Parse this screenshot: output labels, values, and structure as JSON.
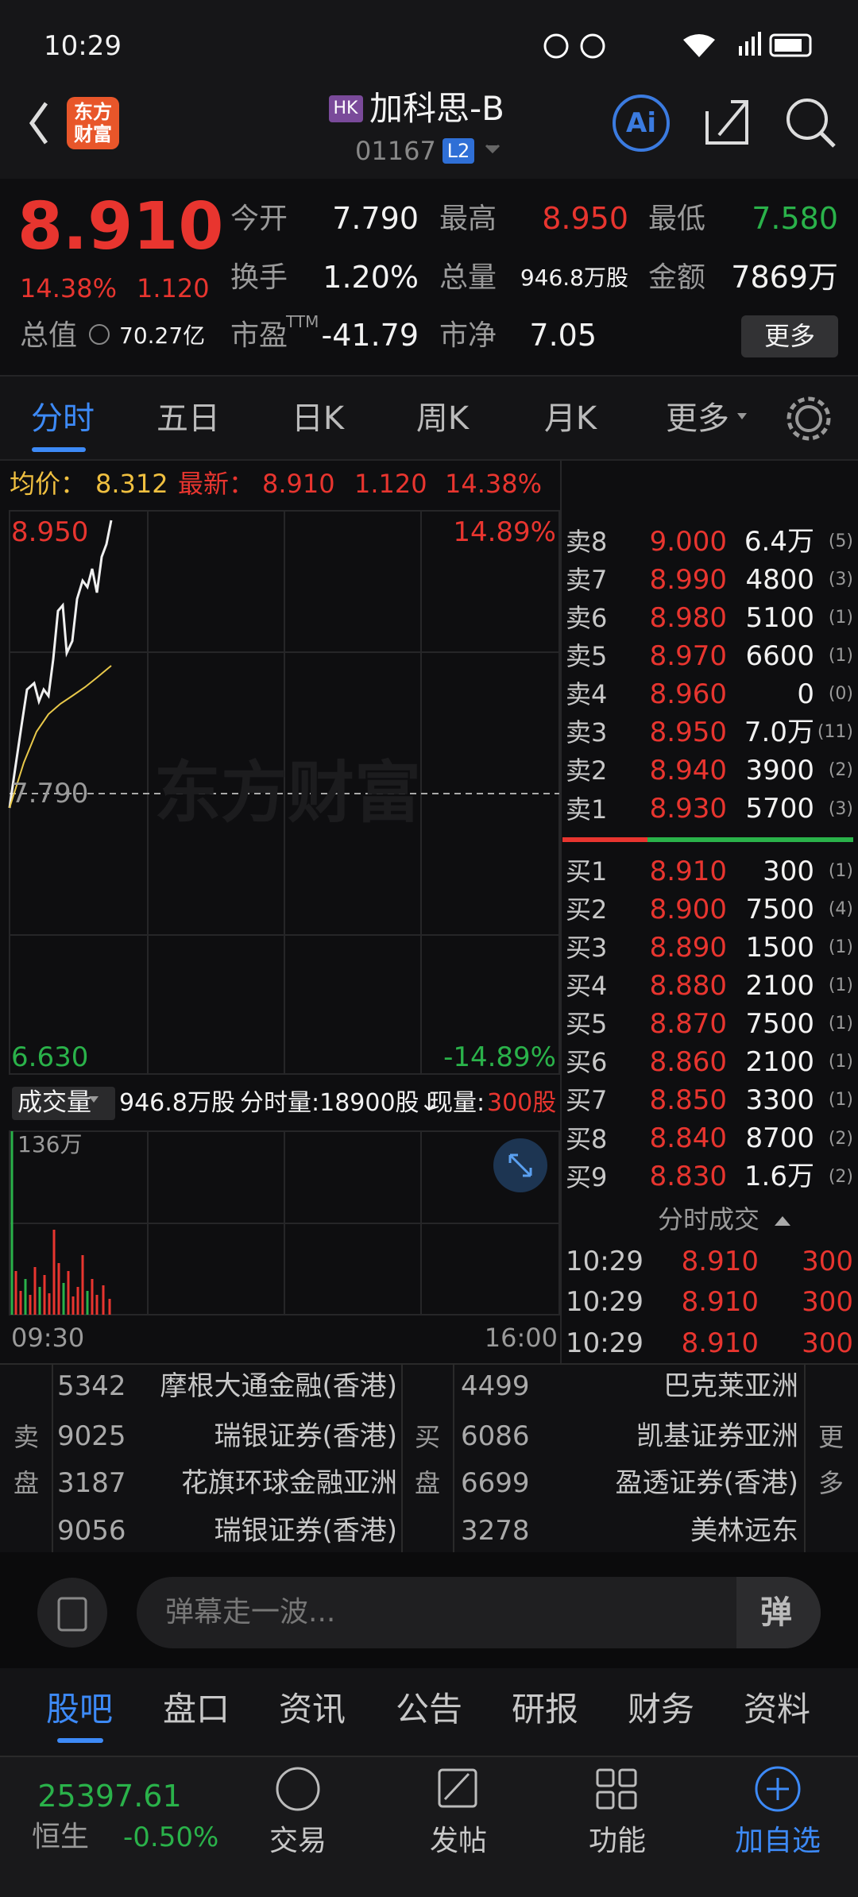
{
  "status_bar": {
    "time": "10:29"
  },
  "header": {
    "logo": "东方财富",
    "market": "HK",
    "name": "加科思-B",
    "code": "01167",
    "level": "L2",
    "ai": "Ai"
  },
  "quote": {
    "price": "8.910",
    "change_pct": "14.38%",
    "change": "1.120",
    "open_label": "今开",
    "open": "7.790",
    "high_label": "最高",
    "high": "8.950",
    "low_label": "最低",
    "low": "7.580",
    "turnover_label": "换手",
    "turnover": "1.20%",
    "volume_label": "总量",
    "volume": "946.8万股",
    "amount_label": "金额",
    "amount": "7869万",
    "cap_label": "总值",
    "cap": "70.27亿",
    "pe_label": "市盈",
    "pe_sup": "TTM",
    "pe": "-41.79",
    "pb_label": "市净",
    "pb": "7.05",
    "more": "更多"
  },
  "tabs": [
    "分时",
    "五日",
    "日K",
    "周K",
    "月K",
    "更多"
  ],
  "summary": {
    "avg_label": "均价：",
    "avg": "8.312",
    "last_label": "最新：",
    "last": "8.910",
    "change": "1.120",
    "change_pct": "14.38%"
  },
  "chart": {
    "high": "8.950",
    "high_pct": "14.89%",
    "prev_close": "7.790",
    "low": "6.630",
    "low_pct": "-14.89%",
    "watermark": "东方财富"
  },
  "volume": {
    "label": "成交量",
    "total": "946.8万股",
    "minute": "分时量:18900股↓",
    "current_label": "现量:",
    "current": "300股",
    "max": "136万",
    "start": "09:30",
    "end": "16:00"
  },
  "order_book": {
    "sell": [
      {
        "label": "卖8",
        "price": "9.000",
        "volume": "6.4万",
        "count": "(5)"
      },
      {
        "label": "卖7",
        "price": "8.990",
        "volume": "4800",
        "count": "(3)"
      },
      {
        "label": "卖6",
        "price": "8.980",
        "volume": "5100",
        "count": "(1)"
      },
      {
        "label": "卖5",
        "price": "8.970",
        "volume": "6600",
        "count": "(1)"
      },
      {
        "label": "卖4",
        "price": "8.960",
        "volume": "0",
        "count": "(0)"
      },
      {
        "label": "卖3",
        "price": "8.950",
        "volume": "7.0万",
        "count": "(11)"
      },
      {
        "label": "卖2",
        "price": "8.940",
        "volume": "3900",
        "count": "(2)"
      },
      {
        "label": "卖1",
        "price": "8.930",
        "volume": "5700",
        "count": "(3)"
      }
    ],
    "buy": [
      {
        "label": "买1",
        "price": "8.910",
        "volume": "300",
        "count": "(1)"
      },
      {
        "label": "买2",
        "price": "8.900",
        "volume": "7500",
        "count": "(4)"
      },
      {
        "label": "买3",
        "price": "8.890",
        "volume": "1500",
        "count": "(1)"
      },
      {
        "label": "买4",
        "price": "8.880",
        "volume": "2100",
        "count": "(1)"
      },
      {
        "label": "买5",
        "price": "8.870",
        "volume": "7500",
        "count": "(1)"
      },
      {
        "label": "买6",
        "price": "8.860",
        "volume": "2100",
        "count": "(1)"
      },
      {
        "label": "买7",
        "price": "8.850",
        "volume": "3300",
        "count": "(1)"
      },
      {
        "label": "买8",
        "price": "8.840",
        "volume": "8700",
        "count": "(2)"
      },
      {
        "label": "买9",
        "price": "8.830",
        "volume": "1.6万",
        "count": "(2)"
      }
    ]
  },
  "trades": {
    "title": "分时成交",
    "rows": [
      {
        "time": "10:29",
        "price": "8.910",
        "volume": "300"
      },
      {
        "time": "10:29",
        "price": "8.910",
        "volume": "300"
      },
      {
        "time": "10:29",
        "price": "8.910",
        "volume": "300"
      }
    ]
  },
  "brokers": {
    "sell_label": "卖盘",
    "buy_label": "买盘",
    "more": "更多",
    "sell": [
      {
        "id": "5342",
        "name": "摩根大通金融(香港)"
      },
      {
        "id": "9025",
        "name": "瑞银证券(香港)"
      },
      {
        "id": "3187",
        "name": "花旗环球金融亚洲"
      },
      {
        "id": "9056",
        "name": "瑞银证券(香港)"
      }
    ],
    "buy": [
      {
        "id": "4499",
        "name": "巴克莱亚洲"
      },
      {
        "id": "6086",
        "name": "凯基证券亚洲"
      },
      {
        "id": "6699",
        "name": "盈透证券(香港)"
      },
      {
        "id": "3278",
        "name": "美林远东"
      }
    ]
  },
  "comment": {
    "placeholder": "弹幕走一波...",
    "button": "弹"
  },
  "bottom_tabs": [
    "股吧",
    "盘口",
    "资讯",
    "公告",
    "研报",
    "财务",
    "资料"
  ],
  "nav": {
    "index_value": "25397.61",
    "index_name": "恒生",
    "index_change": "-0.50%",
    "items": [
      "交易",
      "发帖",
      "功能",
      "加自选"
    ]
  }
}
